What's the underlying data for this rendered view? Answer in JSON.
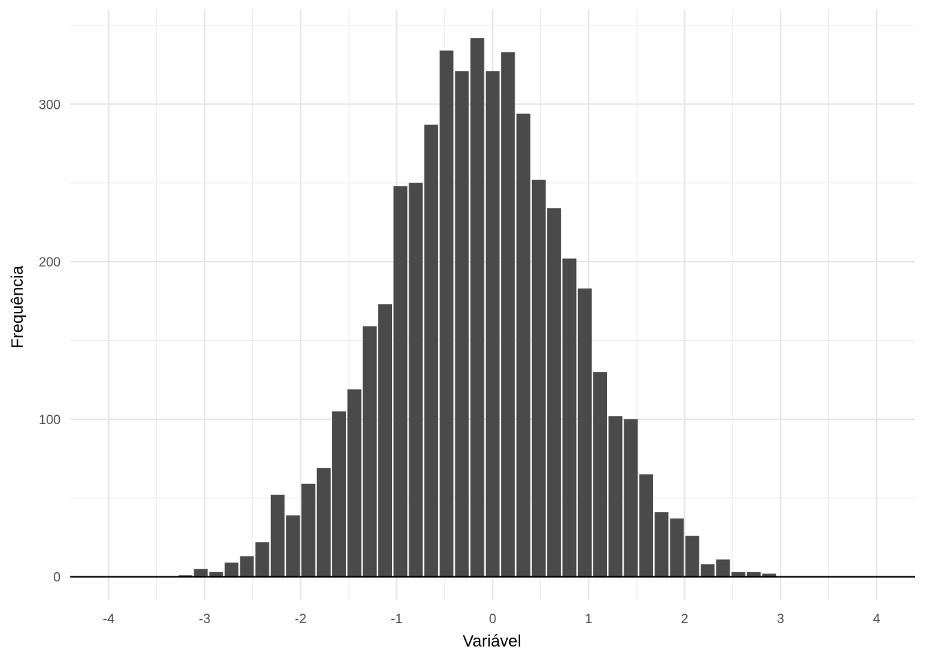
{
  "chart_data": {
    "type": "bar",
    "title": "",
    "xlabel": "Variável",
    "ylabel": "Frequência",
    "xlim": [
      -4.4,
      4.4
    ],
    "ylim": [
      -15,
      360
    ],
    "x_ticks": [
      -4,
      -3,
      -2,
      -1,
      0,
      1,
      2,
      3,
      4
    ],
    "x_tick_labels": [
      "-4",
      "-3",
      "-2",
      "-1",
      "0",
      "1",
      "2",
      "3",
      "4"
    ],
    "y_ticks": [
      0,
      100,
      200,
      300
    ],
    "y_tick_labels": [
      "0",
      "100",
      "200",
      "300"
    ],
    "grid": true,
    "baseline_at_zero": true,
    "bar_color": "#4a4a4a",
    "bin_width": 0.16,
    "bin_centers": [
      -4.0,
      -3.84,
      -3.68,
      -3.52,
      -3.36,
      -3.2,
      -3.04,
      -2.88,
      -2.72,
      -2.56,
      -2.4,
      -2.24,
      -2.08,
      -1.92,
      -1.76,
      -1.6,
      -1.44,
      -1.28,
      -1.12,
      -0.96,
      -0.8,
      -0.64,
      -0.48,
      -0.32,
      -0.16,
      0.0,
      0.16,
      0.32,
      0.48,
      0.64,
      0.8,
      0.96,
      1.12,
      1.28,
      1.44,
      1.6,
      1.76,
      1.92,
      2.08,
      2.24,
      2.4,
      2.56,
      2.72,
      2.88,
      3.04,
      3.2,
      3.36,
      3.52,
      3.68,
      3.84,
      4.0
    ],
    "values": [
      0,
      0,
      0,
      0,
      0,
      1,
      5,
      3,
      9,
      13,
      22,
      52,
      39,
      59,
      69,
      105,
      119,
      159,
      173,
      248,
      250,
      287,
      334,
      321,
      342,
      321,
      333,
      294,
      252,
      234,
      202,
      183,
      130,
      102,
      100,
      65,
      41,
      37,
      26,
      8,
      11,
      3,
      3,
      2,
      0,
      0,
      0,
      0,
      0,
      0,
      0
    ]
  }
}
